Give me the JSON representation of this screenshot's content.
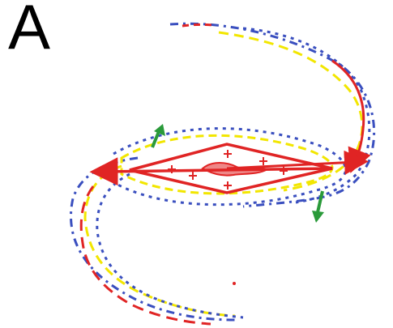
{
  "panel": {
    "label": "A"
  },
  "colors": {
    "red": "#e02424",
    "yellow": "#f2e600",
    "blue": "#3a4fbf",
    "green": "#2a9a3a",
    "text": "#000000"
  },
  "legend": {
    "items": [
      {
        "icon": "green-arrow-up",
        "meaning": ""
      },
      {
        "icon": "green-arrow-down",
        "meaning": ""
      }
    ]
  }
}
